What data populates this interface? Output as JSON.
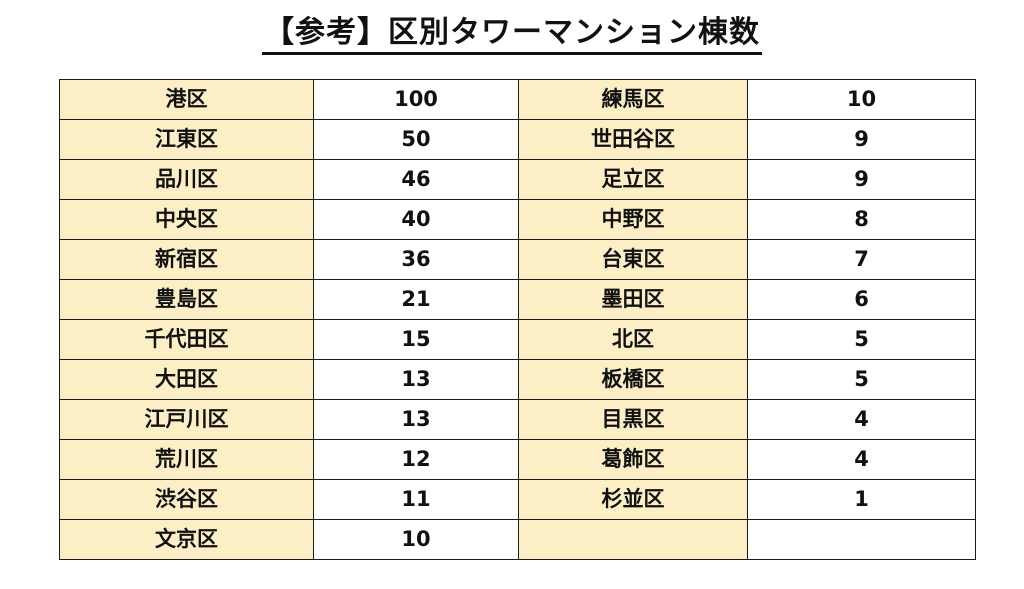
{
  "title": "【参考】区別タワーマンション棟数",
  "rows": [
    {
      "left_name": "港区",
      "left_value": "100",
      "right_name": "練馬区",
      "right_value": "10"
    },
    {
      "left_name": "江東区",
      "left_value": "50",
      "right_name": "世田谷区",
      "right_value": "9"
    },
    {
      "left_name": "品川区",
      "left_value": "46",
      "right_name": "足立区",
      "right_value": "9"
    },
    {
      "left_name": "中央区",
      "left_value": "40",
      "right_name": "中野区",
      "right_value": "8"
    },
    {
      "left_name": "新宿区",
      "left_value": "36",
      "right_name": "台東区",
      "right_value": "7"
    },
    {
      "left_name": "豊島区",
      "left_value": "21",
      "right_name": "墨田区",
      "right_value": "6"
    },
    {
      "left_name": "千代田区",
      "left_value": "15",
      "right_name": "北区",
      "right_value": "5"
    },
    {
      "left_name": "大田区",
      "left_value": "13",
      "right_name": "板橋区",
      "right_value": "5"
    },
    {
      "left_name": "江戸川区",
      "left_value": "13",
      "right_name": "目黒区",
      "right_value": "4"
    },
    {
      "left_name": "荒川区",
      "left_value": "12",
      "right_name": "葛飾区",
      "right_value": "4"
    },
    {
      "left_name": "渋谷区",
      "left_value": "11",
      "right_name": "杉並区",
      "right_value": "1"
    },
    {
      "left_name": "文京区",
      "left_value": "10",
      "right_name": "",
      "right_value": ""
    }
  ],
  "colors": {
    "name_cell_background": "#fcefc6",
    "value_cell_background": "#ffffff",
    "border": "#1a1a1a"
  }
}
